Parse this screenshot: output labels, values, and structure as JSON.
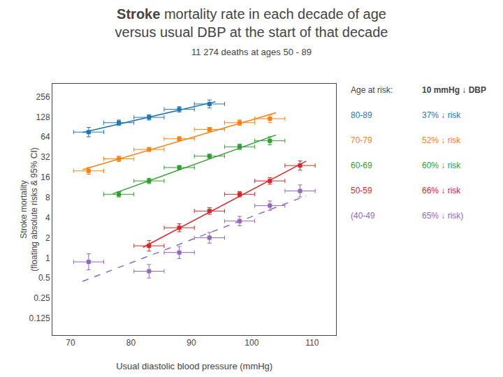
{
  "chart_data": {
    "type": "scatter",
    "title": "Stroke mortality rate in each decade of age\nversus usual DBP at the start of that decade",
    "title_bold": "Stroke",
    "subtitle": "11 274 deaths at ages 50 - 89",
    "x_label": "Usual diastolic blood pressure (mmHg)",
    "y_label": "Stroke mortality\n(floating absolute risks & 95% CI)",
    "log": "y",
    "grid": false,
    "marker": "square",
    "xlim": [
      67,
      114
    ],
    "xticks": [
      70,
      80,
      90,
      100,
      110
    ],
    "ylim": [
      0.07,
      400
    ],
    "yticks": [
      0.125,
      0.25,
      0.5,
      1,
      2,
      4,
      8,
      16,
      32,
      64,
      128,
      256
    ],
    "legend_header": [
      "Age at risk:",
      "10 mmHg ↓ DBP"
    ],
    "series": [
      {
        "name": "80-89",
        "risk_label": "37% ↓ risk",
        "color": "#1f77b4",
        "line_style": "solid",
        "x": [
          73,
          78,
          83,
          88,
          93
        ],
        "values": [
          75.858,
          104.713,
          125.893,
          165.959,
          199.526
        ],
        "error_plus": [
          13.267,
          10.103,
          12.146,
          16.011,
          29.561
        ],
        "error_minus": [
          11.292,
          9.214,
          11.077,
          14.603,
          25.746
        ],
        "x_error": [
          2.5,
          2.5,
          2.5,
          2.5,
          2.5
        ],
        "fit": {
          "x": [
            72,
            94
          ],
          "values": [
            75.02,
            215.18
          ]
        }
      },
      {
        "name": "70-79",
        "risk_label": "52% ↓ risk",
        "color": "#ff7f0e",
        "line_style": "solid",
        "x": [
          73,
          78,
          83,
          88,
          93,
          98,
          103
        ],
        "values": [
          19.953,
          30.2,
          41.687,
          60.256,
          83.176,
          104.713,
          120.226
        ],
        "error_plus": [
          2.4347,
          2.9136,
          2.9814,
          4.3095,
          5.9487,
          10.103,
          17.812
        ],
        "error_minus": [
          2.1699,
          2.6573,
          2.7824,
          4.0219,
          5.5517,
          9.214,
          15.514
        ],
        "x_error": [
          2.5,
          2.5,
          2.5,
          2.5,
          2.5,
          2.5,
          2.5
        ],
        "fit": {
          "x": [
            72,
            104
          ],
          "values": [
            20.783,
            147.23
          ]
        }
      },
      {
        "name": "60-69",
        "risk_label": "60% ↓ risk",
        "color": "#2ca02c",
        "line_style": "solid",
        "x": [
          78,
          83,
          88,
          93,
          98,
          103
        ],
        "values": [
          8.9125,
          14.125,
          22.387,
          33.113,
          45.709,
          56.234
        ],
        "error_plus": [
          0.8599,
          1.3628,
          1.6011,
          2.3682,
          4.4099,
          8.3313
        ],
        "error_minus": [
          0.7842,
          1.2428,
          1.4942,
          2.2102,
          4.0219,
          7.2562
        ],
        "x_error": [
          2.5,
          2.5,
          2.5,
          2.5,
          2.5,
          2.5
        ],
        "fit": {
          "x": [
            77,
            104
          ],
          "values": [
            9.0563,
            68.609
          ]
        }
      },
      {
        "name": "50-59",
        "risk_label": "66% ↓ risk",
        "color": "#d62728",
        "line_style": "solid",
        "x": [
          83,
          88,
          93,
          98,
          103,
          108
        ],
        "values": [
          1.5136,
          2.8184,
          5.0119,
          8.9125,
          14.125,
          23.988
        ],
        "error_plus": [
          0.30614,
          0.41756,
          0.61154,
          0.8599,
          1.7235,
          4.1955
        ],
        "error_minus": [
          0.25464,
          0.36368,
          0.54504,
          0.7842,
          1.5361,
          3.5709
        ],
        "x_error": [
          2.5,
          2.5,
          2.5,
          2.5,
          2.5,
          2.5
        ],
        "fit": {
          "x": [
            82,
            109
          ],
          "values": [
            1.4372,
            27.913
          ]
        }
      },
      {
        "name": "(40-49",
        "risk_label": "65% ↓ risk)",
        "color": "#9467bd",
        "line_style": "dashed",
        "x": [
          73,
          83,
          88,
          93,
          98,
          103,
          108
        ],
        "values": [
          0.87096,
          0.63096,
          1.20226,
          1.99526,
          3.54813,
          6.0256,
          10
        ],
        "error_plus": [
          0.27719,
          0.16337,
          0.27684,
          0.40357,
          0.62056,
          1.05386,
          2.30269
        ],
        "error_minus": [
          0.21027,
          0.12977,
          0.22503,
          0.33567,
          0.52818,
          0.89698,
          1.87169
        ],
        "x_error": [
          2.5,
          2.5,
          2.5,
          2.5,
          2.5,
          2.5,
          2.5
        ],
        "fit": {
          "x": [
            72,
            109
          ],
          "values": [
            0.44598,
            8.4592
          ]
        }
      }
    ]
  }
}
